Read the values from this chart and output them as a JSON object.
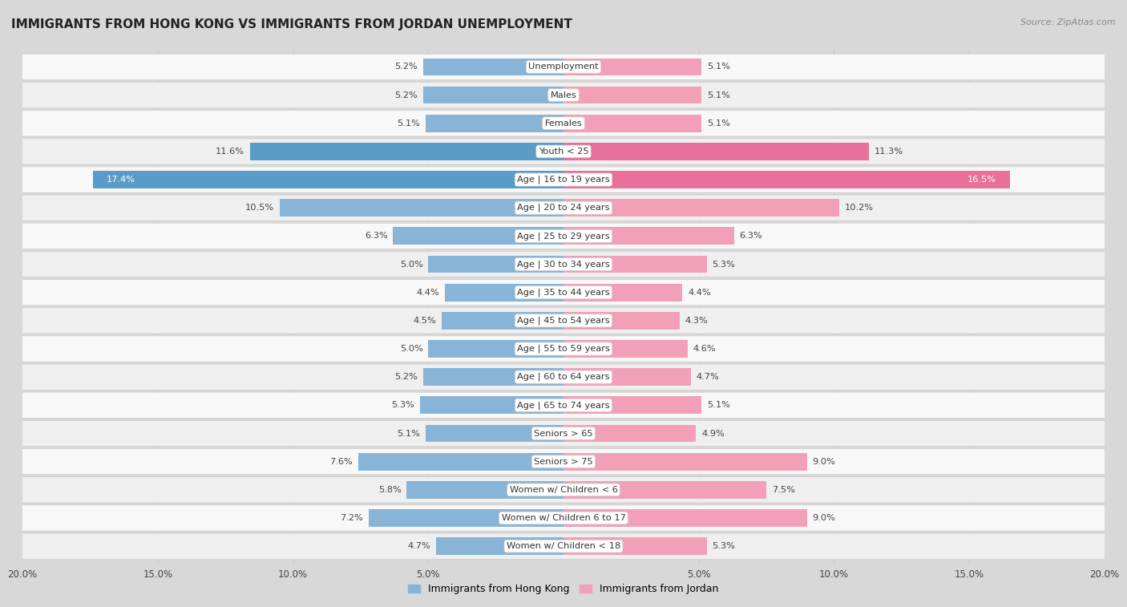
{
  "title": "IMMIGRANTS FROM HONG KONG VS IMMIGRANTS FROM JORDAN UNEMPLOYMENT",
  "source": "Source: ZipAtlas.com",
  "categories": [
    "Unemployment",
    "Males",
    "Females",
    "Youth < 25",
    "Age | 16 to 19 years",
    "Age | 20 to 24 years",
    "Age | 25 to 29 years",
    "Age | 30 to 34 years",
    "Age | 35 to 44 years",
    "Age | 45 to 54 years",
    "Age | 55 to 59 years",
    "Age | 60 to 64 years",
    "Age | 65 to 74 years",
    "Seniors > 65",
    "Seniors > 75",
    "Women w/ Children < 6",
    "Women w/ Children 6 to 17",
    "Women w/ Children < 18"
  ],
  "hong_kong": [
    5.2,
    5.2,
    5.1,
    11.6,
    17.4,
    10.5,
    6.3,
    5.0,
    4.4,
    4.5,
    5.0,
    5.2,
    5.3,
    5.1,
    7.6,
    5.8,
    7.2,
    4.7
  ],
  "jordan": [
    5.1,
    5.1,
    5.1,
    11.3,
    16.5,
    10.2,
    6.3,
    5.3,
    4.4,
    4.3,
    4.6,
    4.7,
    5.1,
    4.9,
    9.0,
    7.5,
    9.0,
    5.3
  ],
  "hk_color": "#88b4d8",
  "jordan_color": "#f2a0b8",
  "hk_color_strong": "#5a9cc8",
  "jordan_color_strong": "#e8709a",
  "row_bg_white": "#ffffff",
  "row_bg_gray": "#ebebeb",
  "outer_bg": "#d8d8d8",
  "xlim": 20.0,
  "legend_hk": "Immigrants from Hong Kong",
  "legend_jordan": "Immigrants from Jordan",
  "title_fontsize": 11,
  "source_fontsize": 8,
  "label_fontsize": 8.2,
  "value_fontsize": 8.2
}
